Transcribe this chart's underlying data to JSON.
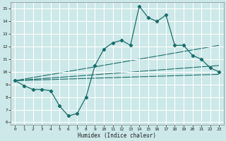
{
  "xlabel": "Humidex (Indice chaleur)",
  "bg_color": "#cce8e8",
  "grid_color": "#ffffff",
  "line_color": "#1a6e6a",
  "xlim": [
    -0.5,
    23.5
  ],
  "ylim": [
    5.8,
    15.5
  ],
  "xticks": [
    0,
    1,
    2,
    3,
    4,
    5,
    6,
    7,
    8,
    9,
    10,
    11,
    12,
    13,
    14,
    15,
    16,
    17,
    18,
    19,
    20,
    21,
    22,
    23
  ],
  "yticks": [
    6,
    7,
    8,
    9,
    10,
    11,
    12,
    13,
    14,
    15
  ],
  "main_series": {
    "x": [
      0,
      1,
      2,
      3,
      4,
      5,
      6,
      7,
      8,
      9,
      10,
      11,
      12,
      13,
      14,
      15,
      16,
      17,
      18,
      19,
      20,
      21,
      22,
      23
    ],
    "y": [
      9.3,
      8.9,
      8.6,
      8.6,
      8.5,
      7.3,
      6.5,
      6.7,
      8.0,
      10.5,
      11.8,
      12.3,
      12.5,
      12.1,
      15.2,
      14.3,
      14.0,
      14.5,
      12.1,
      12.1,
      11.3,
      11.0,
      10.3,
      10.0
    ]
  },
  "trend_lines": [
    {
      "x": [
        0,
        23
      ],
      "y": [
        9.3,
        12.1
      ]
    },
    {
      "x": [
        0,
        23
      ],
      "y": [
        9.3,
        10.5
      ]
    },
    {
      "x": [
        0,
        23
      ],
      "y": [
        9.3,
        9.8
      ]
    }
  ]
}
